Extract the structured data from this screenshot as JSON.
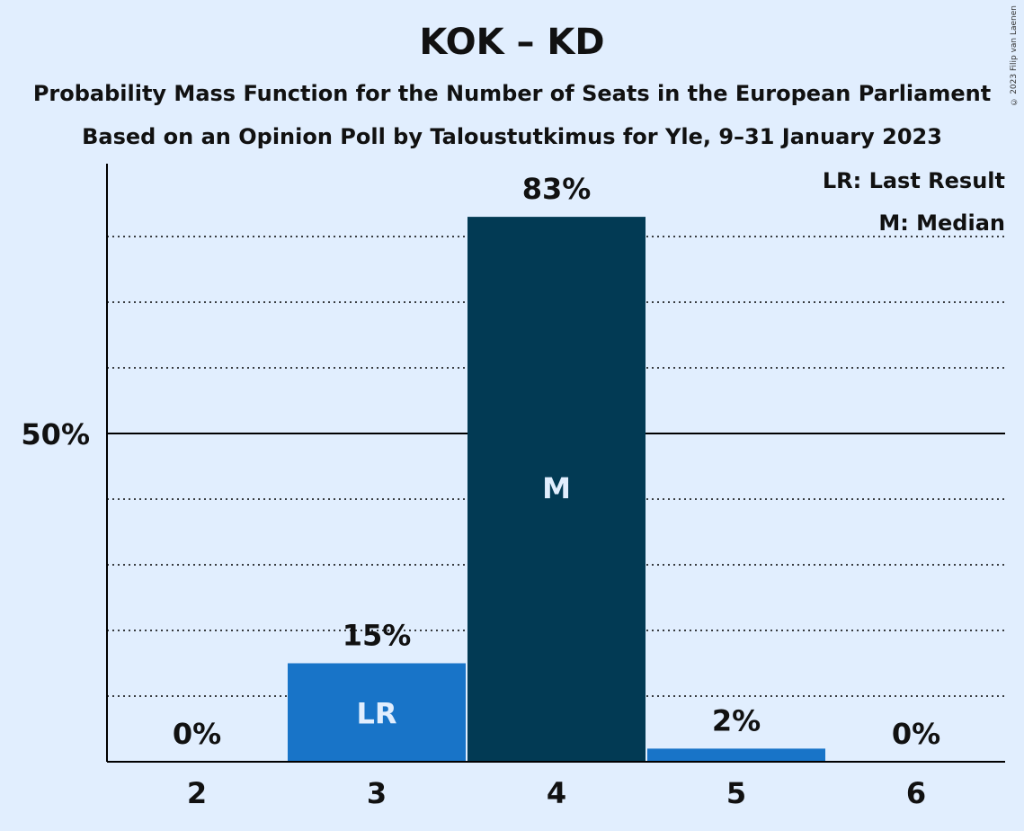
{
  "title": "KOK – KD",
  "subtitle1": "Probability Mass Function for the Number of Seats in the European Parliament",
  "subtitle2": "Based on an Opinion Poll by Taloustutkimus for Yle, 9–31 January 2023",
  "copyright": "© 2023 Filip van Laenen",
  "legend": {
    "last_result": "LR: Last Result",
    "median": "M: Median"
  },
  "colors": {
    "background": "#e1eefe",
    "bar_light": "#1874c8",
    "bar_dark": "#023a54",
    "text": "#111111"
  },
  "chart_data": {
    "type": "bar",
    "categories": [
      "2",
      "3",
      "4",
      "5",
      "6"
    ],
    "values": [
      0,
      15,
      83,
      2,
      0
    ],
    "data_labels": [
      "0%",
      "15%",
      "83%",
      "2%",
      "0%"
    ],
    "bar_markers": [
      "",
      "LR",
      "M",
      "",
      ""
    ],
    "bar_styles": [
      "light",
      "light",
      "dark",
      "light",
      "light"
    ],
    "ylim": [
      0,
      90
    ],
    "y_ticks": [
      {
        "value": 50,
        "label": "50%"
      }
    ],
    "gridlines": [
      10,
      20,
      30,
      40,
      50,
      60,
      70,
      80
    ],
    "major_gridline": 50,
    "legend_position": "top-right",
    "grid": true
  }
}
